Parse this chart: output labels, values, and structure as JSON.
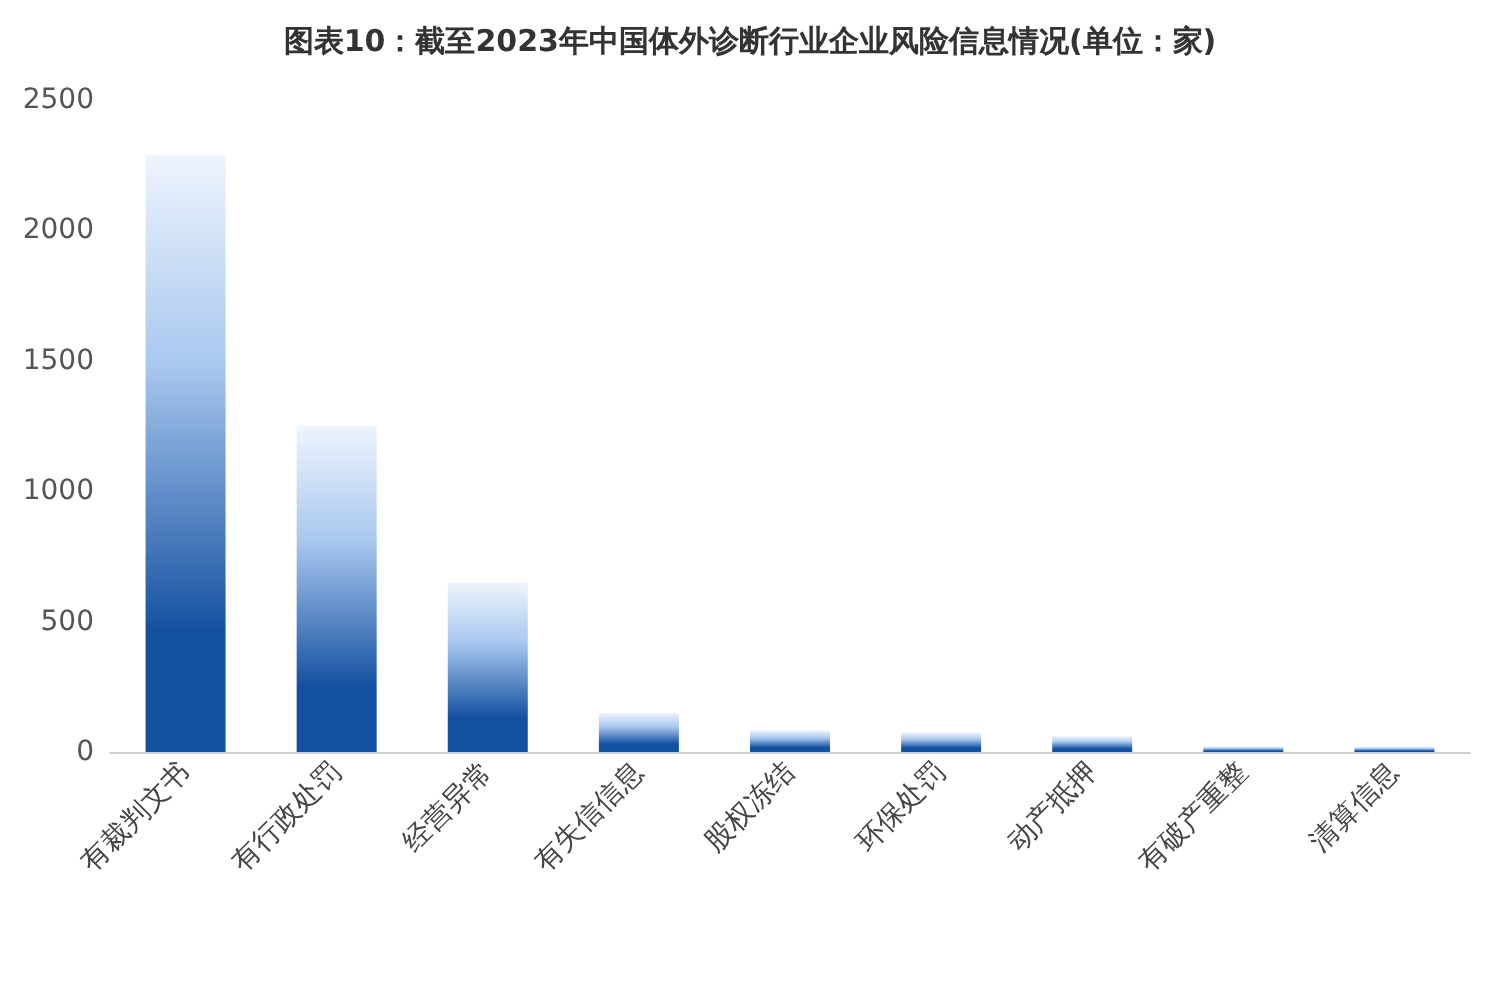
{
  "chart_data": {
    "type": "bar",
    "title": "图表10：截至2023年中国体外诊断行业企业风险信息情况(单位：家)",
    "categories": [
      "有裁判文书",
      "有行政处罚",
      "经营异常",
      "有失信信息",
      "股权冻结",
      "环保处罚",
      "动产抵押",
      "有破产重整",
      "清算信息"
    ],
    "values": [
      2290,
      1250,
      650,
      150,
      83,
      75,
      60,
      21,
      20
    ],
    "color": "#1450a0",
    "ylim": [
      0,
      2500
    ],
    "yticks": [
      0,
      500,
      1000,
      1500,
      2000,
      2500
    ],
    "grid": false
  }
}
